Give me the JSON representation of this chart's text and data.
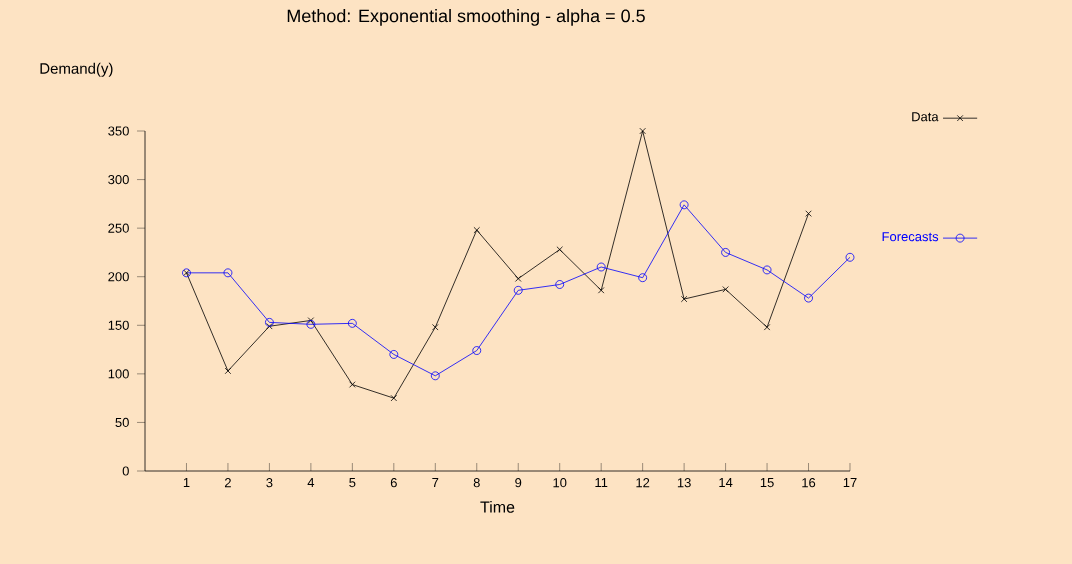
{
  "chart_data": {
    "type": "line",
    "title": "Method: Exponential smoothing - alpha = 0.5",
    "xlabel": "Time",
    "ylabel": "Demand(y)",
    "xlim": [
      0,
      17
    ],
    "xticks": [
      1,
      2,
      3,
      4,
      5,
      6,
      7,
      8,
      9,
      10,
      11,
      12,
      13,
      14,
      15,
      16,
      17
    ],
    "ylim": [
      0,
      350
    ],
    "yticks": [
      0,
      50,
      100,
      150,
      200,
      250,
      300,
      350
    ],
    "grid": false,
    "legend": "right",
    "line_style": "solid",
    "series": [
      {
        "name": "Data",
        "color": "#000000",
        "marker": "cross",
        "x": [
          1,
          2,
          3,
          4,
          5,
          6,
          7,
          8,
          9,
          10,
          11,
          12,
          13,
          14,
          15,
          16
        ],
        "values": [
          204,
          103,
          149,
          155,
          89,
          75,
          148,
          248,
          198,
          228,
          186,
          350,
          177,
          187,
          148,
          265
        ]
      },
      {
        "name": "Forecasts",
        "color": "#0000ff",
        "marker": "circle",
        "x": [
          1,
          2,
          3,
          4,
          5,
          6,
          7,
          8,
          9,
          10,
          11,
          12,
          13,
          14,
          15,
          16,
          17
        ],
        "values": [
          204,
          204,
          153,
          151,
          152,
          120,
          98,
          124,
          186,
          192,
          210,
          199,
          274,
          225,
          207,
          178,
          220
        ]
      }
    ]
  }
}
